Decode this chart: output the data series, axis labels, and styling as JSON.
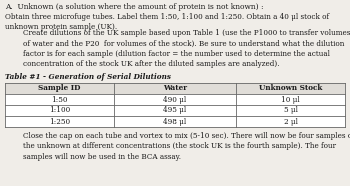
{
  "title": "A.  Unknown (a solution where the amount of protein is not known) :",
  "para1": "Obtain three microfuge tubes. Label them 1:50, 1:100 and 1:250. Obtain a 40 μl stock of\nunknown protein sample (UK).",
  "para2_indent": "        Create dilutions of the UK sample based upon Table 1 (use the P1000 to transfer volumes\n        of water and the P20  for volumes of the stock). Be sure to understand what the dilution\n        factor is for each sample (dilution factor = the number used to determine the actual\n        concentration of the stock UK after the diluted samples are analyzed).",
  "table_title": "Table #1 - Generation of Serial Dilutions",
  "table_headers": [
    "Sample ID",
    "Water",
    "Unknown Stock"
  ],
  "table_rows": [
    [
      "1:50",
      "490 μl",
      "10 μl"
    ],
    [
      "1:100",
      "495 μl",
      "5 μl"
    ],
    [
      "1:250",
      "498 μl",
      "2 μl"
    ]
  ],
  "para3": "        Close the cap on each tube and vortex to mix (5-10 sec). There will now be four samples of\n        the unknown at different concentrations (the stock UK is the fourth sample). The four\n        samples will now be used in the BCA assay.",
  "bg_color": "#f0ede8",
  "text_color": "#1a1a1a",
  "table_border_color": "#666666",
  "font_size": 5.2,
  "title_font_size": 5.4
}
